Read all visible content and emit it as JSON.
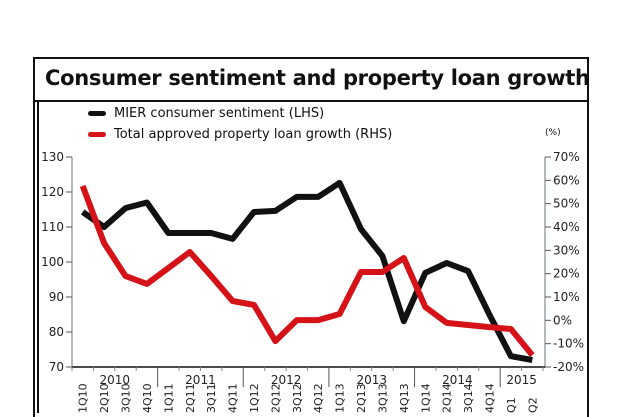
{
  "chart_data": {
    "type": "line",
    "title": "Consumer sentiment and property loan growth",
    "right_unit_label": "(%)",
    "categories": [
      "1Q10",
      "2Q10",
      "3Q10",
      "4Q10",
      "1Q11",
      "2Q11",
      "3Q11",
      "4Q11",
      "1Q12",
      "2Q12",
      "3Q12",
      "4Q12",
      "1Q13",
      "2Q13",
      "3Q13",
      "4Q13",
      "1Q14",
      "2Q14",
      "3Q14",
      "4Q14",
      "1Q15",
      "2Q15"
    ],
    "category_labels": [
      "1Q10",
      "2Q10",
      "3Q10",
      "4Q10",
      "1Q11",
      "2Q11",
      "3Q11",
      "4Q11",
      "1Q12",
      "2Q12",
      "3Q12",
      "4Q12",
      "1Q13",
      "2Q13",
      "3Q13",
      "4Q13",
      "1Q14",
      "2Q14",
      "3Q14",
      "4Q14",
      "Q1",
      "Q2"
    ],
    "year_labels": [
      "2010",
      "2011",
      "2012",
      "2013",
      "2014",
      "2015"
    ],
    "series": [
      {
        "name": "MIER consumer sentiment (LHS)",
        "axis": "left",
        "color": "#111111",
        "values": [
          114.3,
          110.0,
          115.4,
          117.0,
          108.3,
          108.3,
          108.3,
          106.6,
          114.3,
          114.6,
          118.6,
          118.6,
          122.6,
          109.4,
          101.7,
          83.1,
          96.9,
          99.7,
          97.4,
          84.9,
          73.1,
          72.0
        ]
      },
      {
        "name": "Total approved property loan growth (RHS)",
        "axis": "right",
        "color": "#d41217",
        "values": [
          57.6,
          33.1,
          19.0,
          15.6,
          22.4,
          29.3,
          19.0,
          8.3,
          6.6,
          -8.9,
          0.1,
          0.1,
          2.7,
          20.7,
          20.7,
          26.7,
          5.7,
          -1.1,
          -2.0,
          -2.9,
          -3.7,
          -14.9
        ]
      }
    ],
    "left_axis": {
      "ylim": [
        70,
        130
      ],
      "ticks": [
        130,
        120,
        110,
        100,
        90,
        80,
        70
      ],
      "tick_labels": [
        "130",
        "120",
        "110",
        "100",
        "90",
        "80",
        "70"
      ]
    },
    "right_axis": {
      "ylim": [
        -20,
        70
      ],
      "ticks": [
        70,
        60,
        50,
        40,
        30,
        20,
        10,
        0,
        -10,
        -20
      ],
      "tick_labels": [
        "70%",
        "60%",
        "50%",
        "40%",
        "30%",
        "20%",
        "10%",
        "0%",
        "-10%",
        "-20%"
      ]
    },
    "legend_position": "top-left",
    "grid": false
  }
}
